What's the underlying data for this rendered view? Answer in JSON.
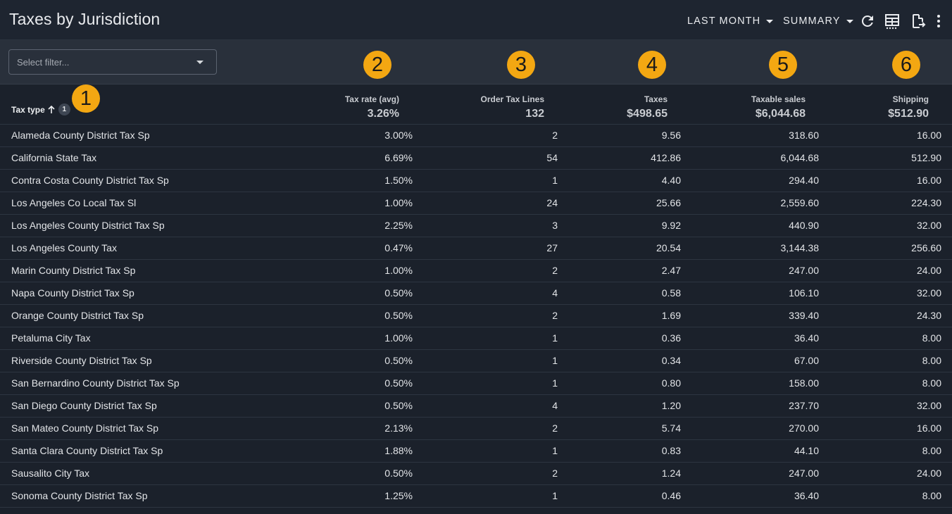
{
  "header": {
    "title": "Taxes by Jurisdiction",
    "period_label": "LAST MONTH",
    "view_label": "SUMMARY"
  },
  "filter": {
    "placeholder": "Select filter..."
  },
  "badges": [
    "1",
    "2",
    "3",
    "4",
    "5",
    "6"
  ],
  "columns": {
    "tax_type": {
      "label": "Tax type",
      "sort_count": "1"
    },
    "tax_rate": {
      "label": "Tax rate (avg)",
      "total": "3.26%"
    },
    "order_lines": {
      "label": "Order Tax Lines",
      "total": "132"
    },
    "taxes": {
      "label": "Taxes",
      "total": "$498.65"
    },
    "taxable_sales": {
      "label": "Taxable sales",
      "total": "$6,044.68"
    },
    "shipping": {
      "label": "Shipping",
      "total": "$512.90"
    }
  },
  "rows": [
    {
      "name": "Alameda County District Tax Sp",
      "rate": "3.00%",
      "lines": "2",
      "taxes": "9.56",
      "sales": "318.60",
      "shipping": "16.00"
    },
    {
      "name": "California State Tax",
      "rate": "6.69%",
      "lines": "54",
      "taxes": "412.86",
      "sales": "6,044.68",
      "shipping": "512.90"
    },
    {
      "name": "Contra Costa County District Tax Sp",
      "rate": "1.50%",
      "lines": "1",
      "taxes": "4.40",
      "sales": "294.40",
      "shipping": "16.00"
    },
    {
      "name": "Los Angeles Co Local Tax Sl",
      "rate": "1.00%",
      "lines": "24",
      "taxes": "25.66",
      "sales": "2,559.60",
      "shipping": "224.30"
    },
    {
      "name": "Los Angeles County District Tax Sp",
      "rate": "2.25%",
      "lines": "3",
      "taxes": "9.92",
      "sales": "440.90",
      "shipping": "32.00"
    },
    {
      "name": "Los Angeles County Tax",
      "rate": "0.47%",
      "lines": "27",
      "taxes": "20.54",
      "sales": "3,144.38",
      "shipping": "256.60"
    },
    {
      "name": "Marin County District Tax Sp",
      "rate": "1.00%",
      "lines": "2",
      "taxes": "2.47",
      "sales": "247.00",
      "shipping": "24.00"
    },
    {
      "name": "Napa County District Tax Sp",
      "rate": "0.50%",
      "lines": "4",
      "taxes": "0.58",
      "sales": "106.10",
      "shipping": "32.00"
    },
    {
      "name": "Orange County District Tax Sp",
      "rate": "0.50%",
      "lines": "2",
      "taxes": "1.69",
      "sales": "339.40",
      "shipping": "24.30"
    },
    {
      "name": "Petaluma City Tax",
      "rate": "1.00%",
      "lines": "1",
      "taxes": "0.36",
      "sales": "36.40",
      "shipping": "8.00"
    },
    {
      "name": "Riverside County District Tax Sp",
      "rate": "0.50%",
      "lines": "1",
      "taxes": "0.34",
      "sales": "67.00",
      "shipping": "8.00"
    },
    {
      "name": "San Bernardino County District Tax Sp",
      "rate": "0.50%",
      "lines": "1",
      "taxes": "0.80",
      "sales": "158.00",
      "shipping": "8.00"
    },
    {
      "name": "San Diego County District Tax Sp",
      "rate": "0.50%",
      "lines": "4",
      "taxes": "1.20",
      "sales": "237.70",
      "shipping": "32.00"
    },
    {
      "name": "San Mateo County District Tax Sp",
      "rate": "2.13%",
      "lines": "2",
      "taxes": "5.74",
      "sales": "270.00",
      "shipping": "16.00"
    },
    {
      "name": "Santa Clara County District Tax Sp",
      "rate": "1.88%",
      "lines": "1",
      "taxes": "0.83",
      "sales": "44.10",
      "shipping": "8.00"
    },
    {
      "name": "Sausalito City Tax",
      "rate": "0.50%",
      "lines": "2",
      "taxes": "1.24",
      "sales": "247.00",
      "shipping": "24.00"
    },
    {
      "name": "Sonoma County District Tax Sp",
      "rate": "1.25%",
      "lines": "1",
      "taxes": "0.46",
      "sales": "36.40",
      "shipping": "8.00"
    }
  ],
  "colors": {
    "accent_badge": "#f3a712",
    "background": "#1b212b",
    "toolbar": "#1e2530",
    "filter_bar": "#29303b"
  },
  "icons": [
    "refresh-icon",
    "table-view-icon",
    "export-icon",
    "more-vert-icon",
    "arrow-up-icon",
    "chevron-down-icon"
  ]
}
